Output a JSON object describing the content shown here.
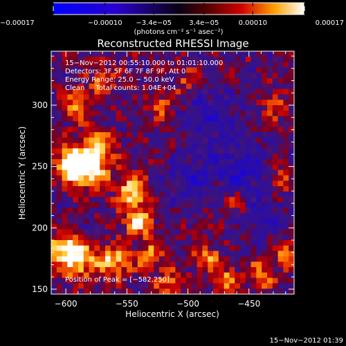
{
  "chart_data": {
    "type": "heatmap",
    "title": "Reconstructed RHESSI Image",
    "xlabel": "Heliocentric X (arcsec)",
    "ylabel": "Heliocentric Y (arcsec)",
    "xlim": [
      -612,
      -413
    ],
    "ylim": [
      146,
      344
    ],
    "x_ticks": [
      -600,
      -550,
      -500,
      -450
    ],
    "y_ticks": [
      150,
      200,
      250,
      300
    ],
    "x_tick_labels": [
      "−600",
      "−550",
      "−500",
      "−450"
    ],
    "y_tick_labels": [
      "150",
      "200",
      "250",
      "300"
    ],
    "colorbar": {
      "range": [
        -0.00017,
        0.00017
      ],
      "ticks": [
        -0.00017,
        -0.0001,
        -3.4e-05,
        3.4e-05,
        0.0001,
        0.00017
      ],
      "tick_labels": [
        "−0.00017",
        "−0.00010",
        "−3.4e−05",
        "3.4e−05",
        "0.00010",
        "0.00017"
      ],
      "unit_label": "(photons cm⁻² s⁻¹ asec⁻²)"
    },
    "annotations": [
      "15−Nov−2012 00:55:10.000 to 01:01:10.000",
      "Detectors: 3F 5F 6F 7F 8F 9F, Att 0",
      "Energy Range: 25.0 − 50.0 keV",
      "Clean     Total counts: 1.04E+04"
    ],
    "peak_label": "Position of Peak = [−582,250]",
    "peak_position": [
      -582,
      250
    ],
    "sources": [
      {
        "x": -582,
        "y": 250,
        "amp": 1.0,
        "sigma": 12
      },
      {
        "x": -595,
        "y": 252,
        "amp": 0.9,
        "sigma": 9
      },
      {
        "x": -572,
        "y": 268,
        "amp": 0.6,
        "sigma": 8
      },
      {
        "x": -590,
        "y": 175,
        "amp": 0.9,
        "sigma": 11
      },
      {
        "x": -603,
        "y": 185,
        "amp": 0.7,
        "sigma": 8
      },
      {
        "x": -545,
        "y": 230,
        "amp": 0.85,
        "sigma": 9
      },
      {
        "x": -540,
        "y": 205,
        "amp": 0.8,
        "sigma": 9
      },
      {
        "x": -560,
        "y": 172,
        "amp": 0.75,
        "sigma": 9
      },
      {
        "x": -530,
        "y": 178,
        "amp": 0.55,
        "sigma": 8
      },
      {
        "x": -515,
        "y": 155,
        "amp": 0.5,
        "sigma": 8
      },
      {
        "x": -485,
        "y": 176,
        "amp": 0.55,
        "sigma": 8
      },
      {
        "x": -470,
        "y": 158,
        "amp": 0.55,
        "sigma": 8
      },
      {
        "x": -440,
        "y": 162,
        "amp": 0.55,
        "sigma": 8
      },
      {
        "x": -420,
        "y": 180,
        "amp": 0.6,
        "sigma": 7
      },
      {
        "x": -520,
        "y": 300,
        "amp": 0.45,
        "sigma": 8
      },
      {
        "x": -500,
        "y": 320,
        "amp": 0.4,
        "sigma": 7
      },
      {
        "x": -590,
        "y": 300,
        "amp": 0.55,
        "sigma": 9
      },
      {
        "x": -570,
        "y": 320,
        "amp": 0.5,
        "sigma": 7
      },
      {
        "x": -430,
        "y": 300,
        "amp": 0.35,
        "sigma": 8
      },
      {
        "x": -460,
        "y": 220,
        "amp": 0.4,
        "sigma": 8
      },
      {
        "x": -425,
        "y": 240,
        "amp": 0.35,
        "sigma": 8
      },
      {
        "x": -480,
        "y": 290,
        "amp": -0.45,
        "sigma": 16
      },
      {
        "x": -455,
        "y": 245,
        "amp": -0.5,
        "sigma": 16
      },
      {
        "x": -500,
        "y": 240,
        "amp": -0.4,
        "sigma": 14
      },
      {
        "x": -440,
        "y": 205,
        "amp": -0.35,
        "sigma": 12
      }
    ]
  },
  "footer": {
    "timestamp": "15−Nov−2012 01:39"
  },
  "colors": {
    "background": "#000000",
    "text": "#ffffff"
  }
}
